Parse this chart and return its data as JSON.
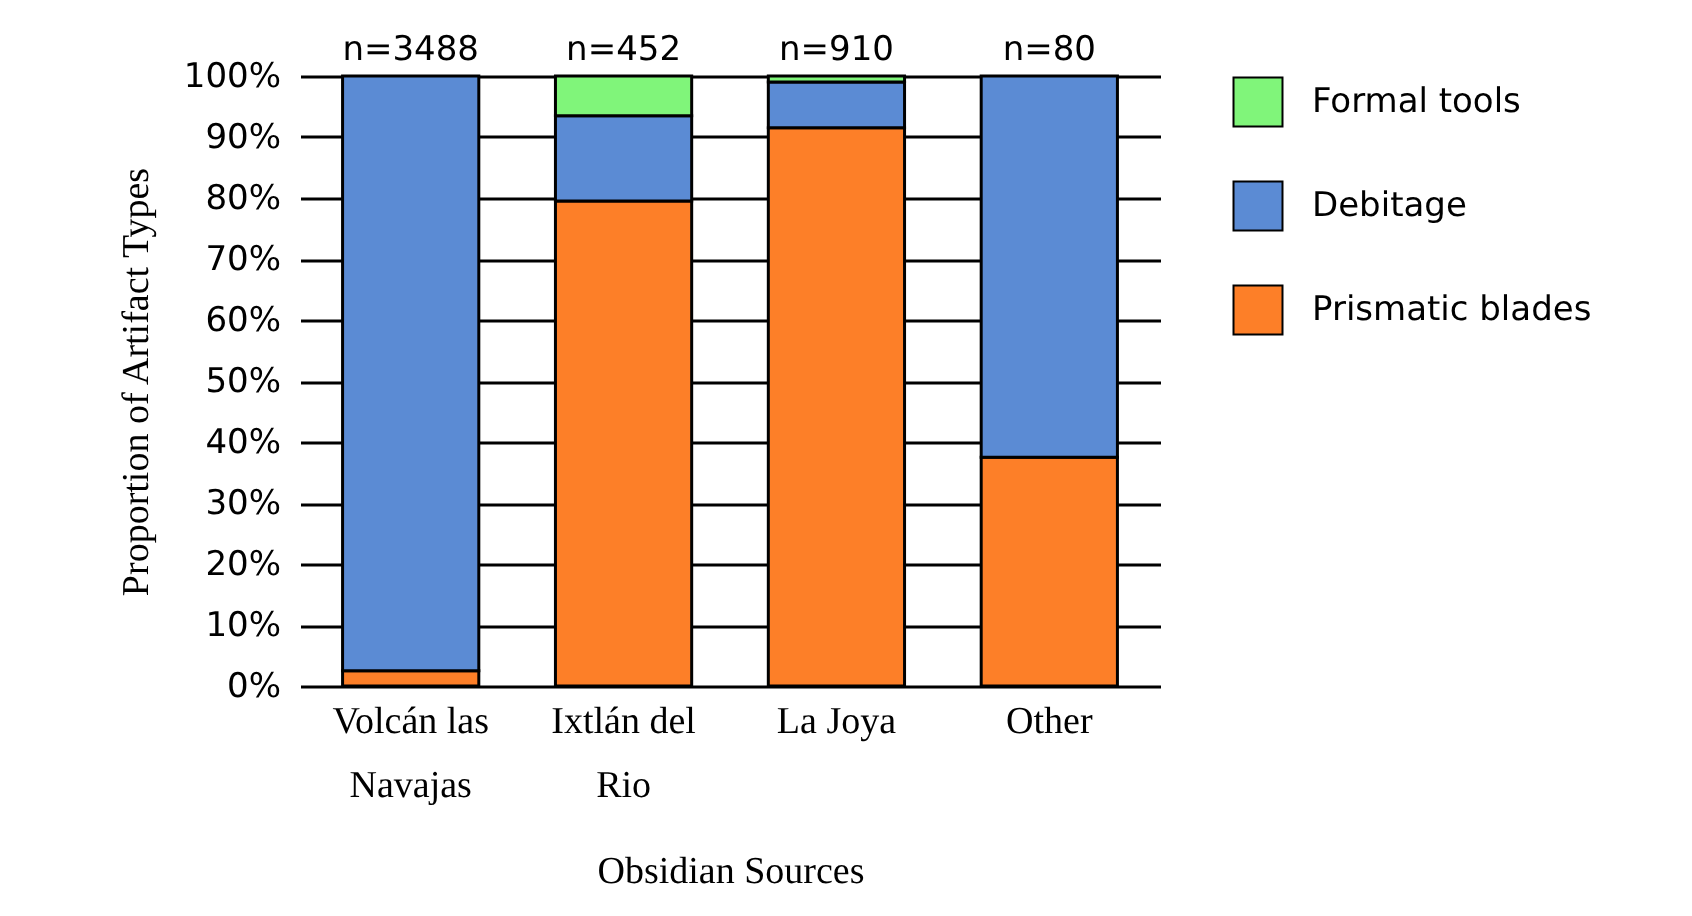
{
  "chart_data": {
    "type": "bar",
    "stacked": true,
    "xlabel": "Obsidian Sources",
    "ylabel": "Proportion of Artifact Types",
    "categories": [
      "Volcán las Navajas",
      "Ixtlán del Rio",
      "La Joya",
      "Other"
    ],
    "series": [
      {
        "name": "Prismatic blades",
        "color": "#fd7f28",
        "values": [
          2.5,
          79.5,
          91.5,
          37.5
        ]
      },
      {
        "name": "Debitage",
        "color": "#5b8bd4",
        "values": [
          97.5,
          14,
          7.5,
          62.5
        ]
      },
      {
        "name": "Formal tools",
        "color": "#80f57a",
        "values": [
          0,
          6.5,
          1,
          0
        ]
      }
    ],
    "ylim": [
      0,
      100
    ],
    "yticks": [
      {
        "value": 0,
        "label": "0%"
      },
      {
        "value": 10,
        "label": "10%"
      },
      {
        "value": 20,
        "label": "20%"
      },
      {
        "value": 30,
        "label": "30%"
      },
      {
        "value": 40,
        "label": "40%"
      },
      {
        "value": 50,
        "label": "50%"
      },
      {
        "value": 60,
        "label": "60%"
      },
      {
        "value": 70,
        "label": "70%"
      },
      {
        "value": 80,
        "label": "80%"
      },
      {
        "value": 90,
        "label": "90%"
      },
      {
        "value": 100,
        "label": "100%"
      }
    ],
    "grid": "y",
    "legend": "right",
    "annotations": [
      {
        "text": "n=3488",
        "x": "Volcán las Navajas",
        "y": 100
      },
      {
        "text": "n=452",
        "x": "Ixtlán del Rio",
        "y": 100
      },
      {
        "text": "n=910",
        "x": "La Joya",
        "y": 100
      },
      {
        "text": "n=80",
        "x": "Other",
        "y": 100
      }
    ]
  }
}
